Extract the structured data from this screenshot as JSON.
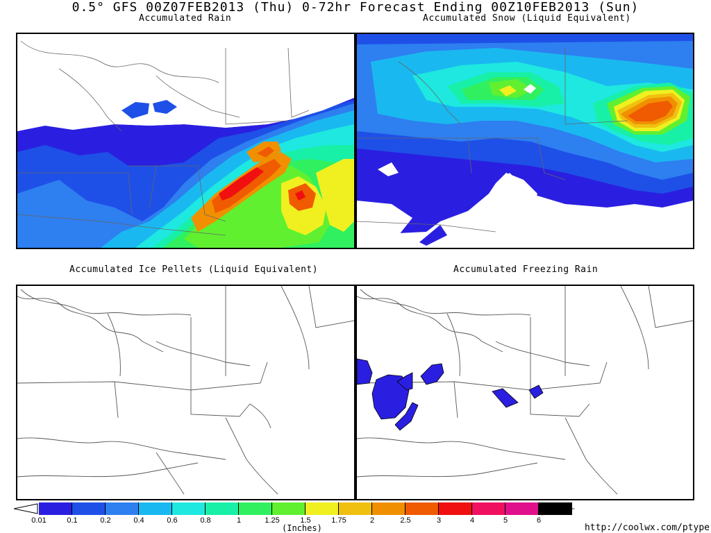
{
  "title": "0.5° GFS 00Z07FEB2013 (Thu) 0-72hr Forecast Ending 00Z10FEB2013 (Sun)",
  "panels": {
    "rain": {
      "title": "Accumulated Rain"
    },
    "snow": {
      "title": "Accumulated Snow (Liquid Equivalent)"
    },
    "ice": {
      "title": "Accumulated Ice Pellets (Liquid Equivalent)"
    },
    "freezing": {
      "title": "Accumulated Freezing Rain"
    }
  },
  "colorbar": {
    "units": "(Inches)",
    "ticks": [
      "0.01",
      "0.1",
      "0.2",
      "0.4",
      "0.6",
      "0.8",
      "1",
      "1.25",
      "1.5",
      "1.75",
      "2",
      "2.5",
      "3",
      "4",
      "5",
      "6"
    ],
    "colors": [
      "#2a1fe0",
      "#1e50e8",
      "#2e7ff0",
      "#1ab8f0",
      "#1ee8e0",
      "#18f0a8",
      "#30f060",
      "#60f030",
      "#f0f020",
      "#f0c010",
      "#f09000",
      "#f05a00",
      "#f01010",
      "#f01060",
      "#e0108c",
      "#000000"
    ]
  },
  "url": "http://coolwx.com/ptype"
}
